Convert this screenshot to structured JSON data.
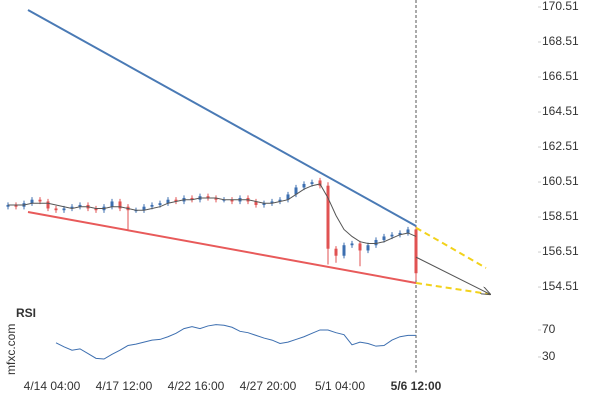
{
  "chart_data": {
    "type": "candlestick",
    "watermark": "mfxc.com",
    "x": [
      0,
      2,
      4,
      6,
      8,
      10,
      12,
      14,
      16,
      18,
      20,
      22,
      24,
      26,
      28,
      30,
      32,
      34,
      36,
      38,
      40,
      42,
      44,
      46,
      48,
      50,
      52,
      54,
      56,
      58,
      60,
      62,
      64,
      66,
      68,
      70,
      72,
      74,
      76,
      78,
      80,
      82,
      84,
      86,
      88,
      90,
      92,
      94,
      96,
      98,
      100,
      102
    ],
    "open": [
      159.1,
      159.2,
      159.1,
      159.3,
      159.5,
      159.4,
      159.0,
      158.9,
      159.0,
      159.1,
      159.2,
      159.0,
      158.9,
      159.1,
      159.4,
      159.1,
      158.9,
      158.9,
      159.1,
      159.2,
      159.3,
      159.5,
      159.4,
      159.6,
      159.5,
      159.7,
      159.6,
      159.5,
      159.5,
      159.4,
      159.6,
      159.4,
      159.2,
      159.3,
      159.4,
      159.5,
      159.8,
      160.2,
      160.4,
      160.6,
      160.3,
      156.7,
      156.3,
      156.9,
      157.0,
      156.6,
      156.9,
      157.2,
      157.4,
      157.5,
      157.6,
      157.8
    ],
    "high": [
      159.35,
      159.35,
      159.45,
      159.65,
      159.65,
      159.55,
      159.15,
      159.15,
      159.25,
      159.35,
      159.35,
      159.15,
      159.25,
      159.55,
      159.55,
      159.25,
      159.05,
      159.25,
      159.35,
      159.45,
      159.65,
      159.65,
      159.75,
      159.75,
      159.85,
      159.85,
      159.75,
      159.65,
      159.65,
      159.75,
      159.75,
      159.55,
      159.45,
      159.55,
      159.65,
      159.95,
      160.35,
      160.55,
      160.65,
      160.75,
      160.5,
      156.85,
      157.05,
      157.15,
      157.15,
      157.05,
      157.35,
      157.55,
      157.65,
      157.75,
      157.95,
      157.95
    ],
    "low": [
      158.95,
      158.95,
      158.95,
      159.15,
      159.25,
      158.85,
      158.75,
      158.75,
      158.85,
      158.95,
      158.85,
      158.75,
      158.75,
      158.95,
      158.85,
      157.8,
      158.75,
      158.75,
      158.95,
      159.05,
      159.15,
      159.25,
      159.25,
      159.35,
      159.35,
      159.45,
      159.35,
      159.35,
      159.25,
      159.25,
      159.25,
      159.05,
      159.05,
      159.15,
      159.25,
      159.35,
      159.65,
      160.05,
      160.25,
      160.15,
      155.8,
      155.9,
      156.15,
      156.75,
      155.7,
      156.45,
      156.75,
      157.05,
      157.25,
      157.35,
      157.45,
      154.9
    ],
    "close": [
      159.2,
      159.1,
      159.3,
      159.5,
      159.4,
      159.0,
      158.9,
      159.0,
      159.1,
      159.2,
      159.0,
      158.9,
      159.1,
      159.4,
      159.0,
      158.9,
      158.9,
      159.1,
      159.2,
      159.3,
      159.5,
      159.4,
      159.6,
      159.5,
      159.7,
      159.6,
      159.5,
      159.5,
      159.4,
      159.6,
      159.4,
      159.2,
      159.3,
      159.4,
      159.5,
      159.8,
      160.2,
      160.4,
      160.5,
      160.3,
      156.7,
      156.3,
      156.9,
      157.0,
      156.6,
      156.9,
      157.2,
      157.4,
      157.5,
      157.6,
      157.8,
      155.3
    ],
    "up_color": "#3d6fb0",
    "down_color": "#e05252",
    "moving_average": {
      "color": "#555555",
      "values": [
        159.2,
        159.2,
        159.2,
        159.3,
        159.3,
        159.3,
        159.2,
        159.1,
        159.0,
        159.1,
        159.1,
        159.0,
        159.0,
        159.1,
        159.1,
        159.0,
        158.9,
        158.9,
        159.0,
        159.1,
        159.3,
        159.4,
        159.5,
        159.5,
        159.6,
        159.6,
        159.6,
        159.5,
        159.5,
        159.5,
        159.5,
        159.4,
        159.3,
        159.3,
        159.4,
        159.5,
        159.8,
        160.1,
        160.3,
        160.4,
        159.6,
        158.6,
        157.8,
        157.4,
        157.1,
        157.0,
        157.0,
        157.1,
        157.3,
        157.5,
        157.6,
        157.4
      ]
    },
    "trendlines": [
      {
        "color": "#4a7ab5",
        "dashed": false,
        "arrow": false,
        "x": [
          5,
          102
        ],
        "y": [
          170.34,
          158.0
        ]
      },
      {
        "color": "#e85a5a",
        "dashed": false,
        "arrow": false,
        "x": [
          5,
          102
        ],
        "y": [
          158.8,
          154.74
        ]
      },
      {
        "color": "#f2d21b",
        "dashed": true,
        "arrow": false,
        "x": [
          102,
          119.5
        ],
        "y": [
          157.9,
          155.6
        ]
      },
      {
        "color": "#f2d21b",
        "dashed": true,
        "arrow": false,
        "x": [
          102,
          120.5
        ],
        "y": [
          154.74,
          154.1
        ]
      },
      {
        "color": "#555555",
        "dashed": false,
        "arrow": true,
        "x": [
          102,
          120.5
        ],
        "y": [
          156.22,
          154.1
        ]
      }
    ],
    "xlim": [
      -0.75,
      132.5
    ],
    "xticks": [
      {
        "value": 11,
        "label": "4/14 04:00"
      },
      {
        "value": 29,
        "label": "4/17 12:00"
      },
      {
        "value": 47,
        "label": "4/22 16:00"
      },
      {
        "value": 65,
        "label": "4/27 20:00"
      },
      {
        "value": 83,
        "label": "5/1 04:00"
      },
      {
        "value": 102,
        "label": "5/6 12:00"
      }
    ],
    "ylim": [
      153.77,
      170.91
    ],
    "yticks": [
      154.51,
      156.51,
      158.51,
      160.51,
      162.51,
      164.51,
      166.51,
      168.51,
      170.51
    ],
    "rsi": {
      "title": "RSI",
      "color": "#3d6fb0",
      "ylim": [
        7,
        107
      ],
      "yticks": [
        30,
        70
      ],
      "values": [
        null,
        null,
        null,
        null,
        null,
        null,
        51,
        45,
        40,
        42,
        35,
        28,
        27,
        34,
        40,
        47,
        49,
        52,
        55,
        56,
        60,
        65,
        72,
        75,
        72,
        76,
        78,
        77,
        74,
        68,
        66,
        62,
        58,
        55,
        50,
        52,
        56,
        60,
        65,
        70,
        70,
        66,
        63,
        48,
        52,
        50,
        46,
        47,
        55,
        60,
        62,
        62
      ]
    }
  }
}
